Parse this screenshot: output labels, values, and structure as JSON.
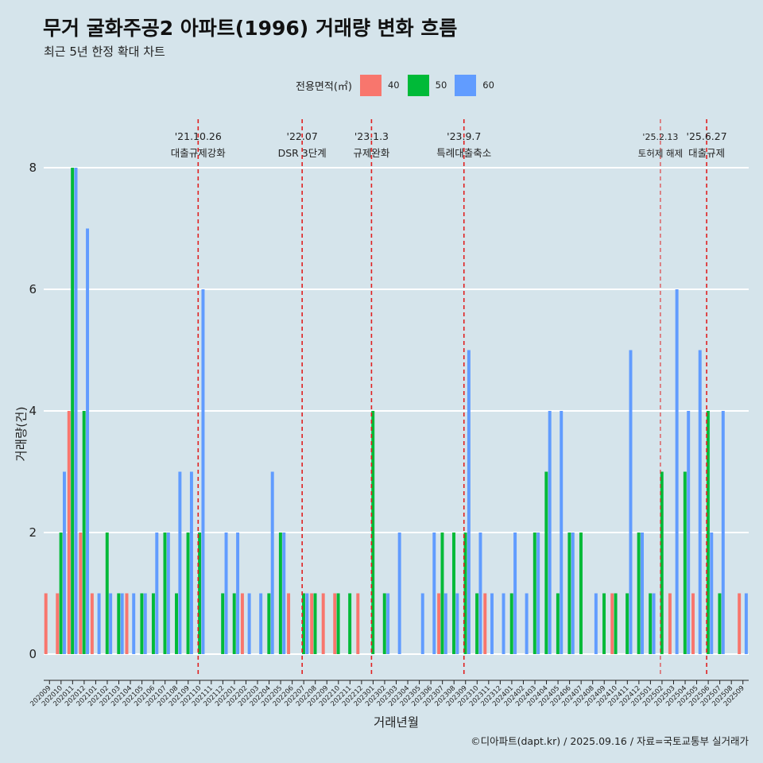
{
  "title": "무거 굴화주공2 아파트(1996) 거래량 변화 흐름",
  "subtitle": "최근 5년 한정 확대 차트",
  "caption": "©디아파트(dapt.kr) / 2025.09.16 / 자료=국토교통부 실거래가",
  "chart_data": {
    "type": "bar",
    "xlabel": "거래년월",
    "ylabel": "거래량(건)",
    "ylim": [
      0,
      8
    ],
    "yticks": [
      0,
      2,
      4,
      6,
      8
    ],
    "grid": true,
    "legend": {
      "title": "전용면적(㎡)",
      "position": "top"
    },
    "categories": [
      "202009",
      "202010",
      "202011",
      "202012",
      "202101",
      "202102",
      "202103",
      "202104",
      "202105",
      "202106",
      "202107",
      "202108",
      "202109",
      "202110",
      "202111",
      "202112",
      "202201",
      "202202",
      "202203",
      "202204",
      "202205",
      "202206",
      "202207",
      "202208",
      "202209",
      "202210",
      "202211",
      "202212",
      "202301",
      "202302",
      "202303",
      "202304",
      "202305",
      "202306",
      "202307",
      "202308",
      "202309",
      "202310",
      "202311",
      "202312",
      "202401",
      "202402",
      "202403",
      "202404",
      "202405",
      "202406",
      "202407",
      "202408",
      "202409",
      "202410",
      "202411",
      "202412",
      "202501",
      "202502",
      "202503",
      "202504",
      "202505",
      "202506",
      "202507",
      "202508",
      "202509"
    ],
    "series": [
      {
        "name": "40",
        "color": "#f8766d",
        "values": [
          1,
          1,
          4,
          2,
          1,
          0,
          0,
          1,
          0,
          0,
          0,
          0,
          0,
          0,
          0,
          0,
          0,
          1,
          0,
          0,
          0,
          1,
          0,
          1,
          1,
          1,
          0,
          1,
          0,
          0,
          0,
          0,
          0,
          0,
          1,
          0,
          0,
          0,
          1,
          0,
          0,
          0,
          0,
          0,
          0,
          0,
          0,
          0,
          0,
          1,
          0,
          0,
          0,
          0,
          1,
          0,
          1,
          0,
          0,
          0,
          1
        ]
      },
      {
        "name": "50",
        "color": "#00ba38",
        "values": [
          0,
          2,
          8,
          4,
          0,
          2,
          1,
          0,
          1,
          1,
          2,
          1,
          2,
          2,
          0,
          1,
          1,
          0,
          0,
          1,
          2,
          0,
          1,
          1,
          0,
          1,
          1,
          0,
          4,
          1,
          0,
          0,
          0,
          0,
          2,
          2,
          2,
          1,
          0,
          0,
          1,
          0,
          2,
          3,
          1,
          2,
          2,
          0,
          1,
          1,
          1,
          2,
          1,
          3,
          0,
          3,
          0,
          4,
          1,
          0,
          0
        ]
      },
      {
        "name": "60",
        "color": "#619cff",
        "values": [
          0,
          3,
          8,
          7,
          1,
          1,
          1,
          1,
          1,
          2,
          2,
          3,
          3,
          6,
          0,
          2,
          2,
          1,
          1,
          3,
          2,
          0,
          1,
          0,
          0,
          0,
          0,
          0,
          0,
          1,
          2,
          0,
          1,
          2,
          1,
          1,
          5,
          2,
          1,
          1,
          2,
          1,
          2,
          4,
          4,
          2,
          0,
          1,
          0,
          0,
          5,
          2,
          1,
          0,
          6,
          4,
          5,
          2,
          4,
          0,
          1
        ]
      }
    ],
    "events": [
      {
        "date": "'21.10.26",
        "label": "대출규제강화",
        "x": "202110"
      },
      {
        "date": "'22.07",
        "label": "DSR 3단계",
        "x": "202207"
      },
      {
        "date": "'23.1.3",
        "label": "규제완화",
        "x": "202301"
      },
      {
        "date": "'23.9.7",
        "label": "특례대출축소",
        "x": "202309"
      },
      {
        "date": "'25.2.13",
        "label": "토허제 해제",
        "x": "202502"
      },
      {
        "date": "'25.6.27",
        "label": "대출규제",
        "x": "202506"
      }
    ]
  }
}
